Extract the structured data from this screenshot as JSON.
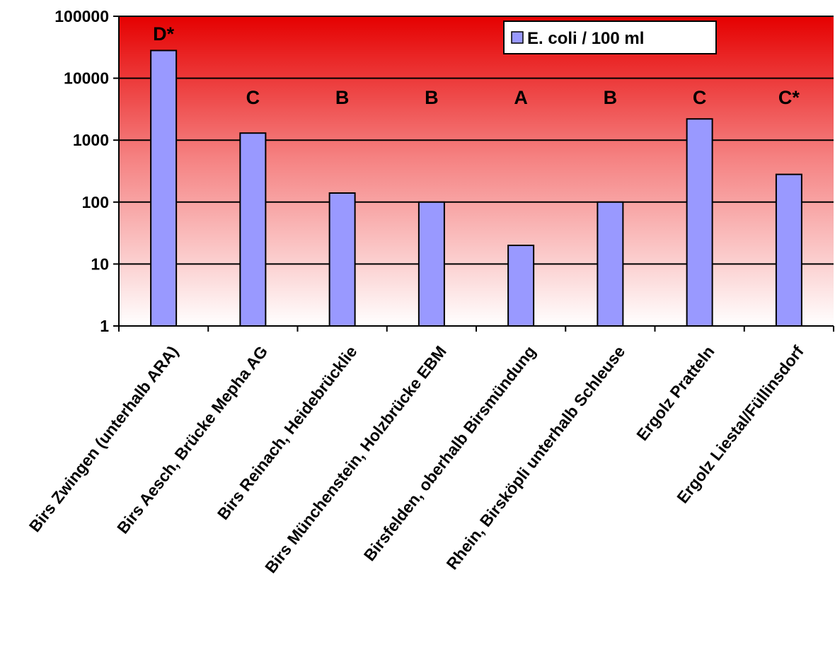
{
  "chart_data": {
    "type": "bar",
    "yscale": "log",
    "ylim": [
      1,
      100000
    ],
    "yticks": [
      "1",
      "10",
      "100",
      "1000",
      "10000",
      "100000"
    ],
    "grid": true,
    "legend_position": "top-right",
    "categories": [
      "Birs Zwingen (unterhalb ARA)",
      "Birs Aesch, Brücke Mepha AG",
      "Birs Reinach, Heidebrücklie",
      "Birs Münchenstein, Holzbrücke EBM",
      "Birsfelden, oberhalb Birsmündung",
      "Rhein, Birsköpli unterhalb Schleuse",
      "Ergolz Pratteln",
      "Ergolz Liestal/Füllinsdorf"
    ],
    "series": [
      {
        "name": "E. coli / 100 ml",
        "color": "#9999ff",
        "values": [
          28000,
          1300,
          140,
          100,
          20,
          100,
          2200,
          280
        ]
      }
    ],
    "annotations": [
      "D*",
      "C",
      "B",
      "B",
      "A",
      "B",
      "C",
      "C*"
    ],
    "background_gradient": {
      "top": "#e50000",
      "bottom": "#ffffff"
    }
  }
}
